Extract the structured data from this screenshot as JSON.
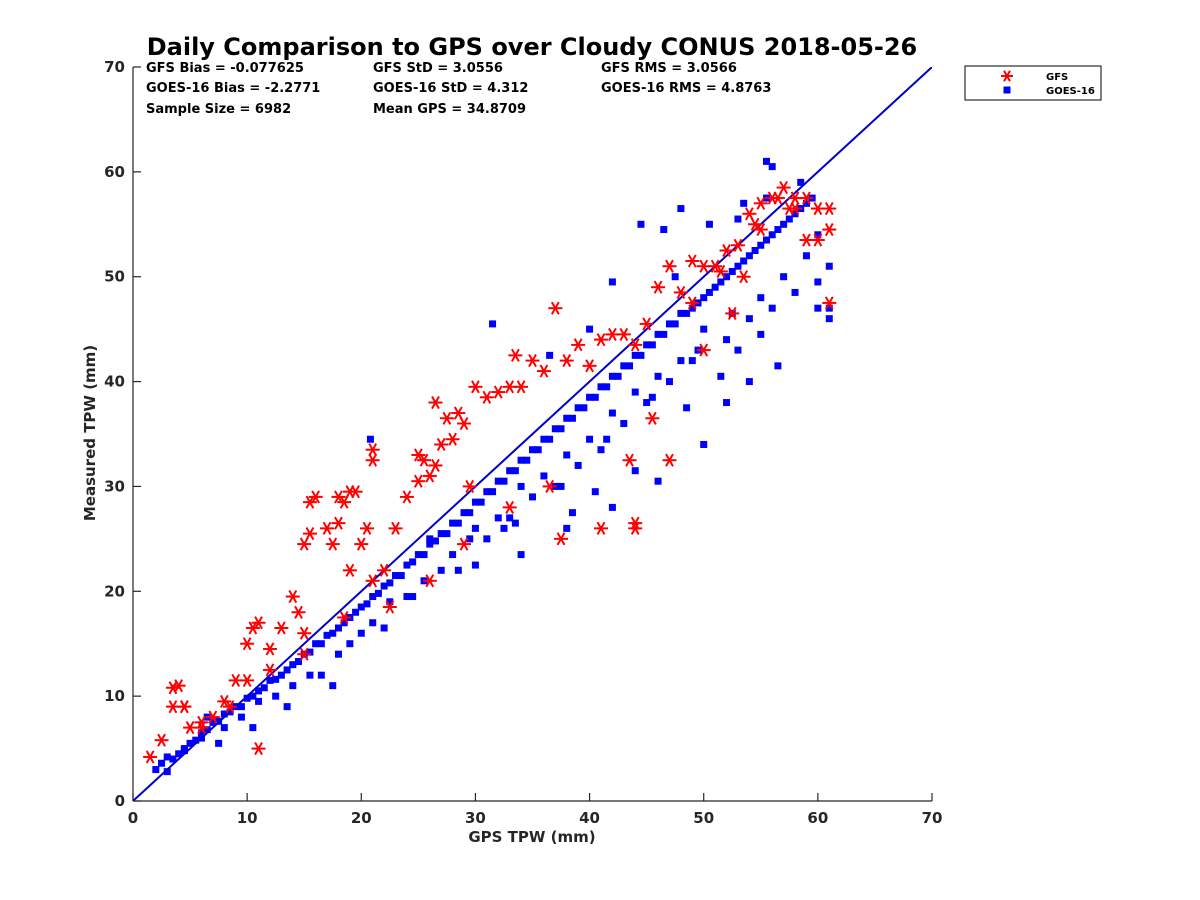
{
  "chart_data": {
    "type": "scatter",
    "title": "Daily Comparison to GPS over Cloudy CONUS 2018-05-26",
    "xlabel": "GPS TPW (mm)",
    "ylabel": "Measured TPW (mm)",
    "xlim": [
      0,
      70
    ],
    "ylim": [
      0,
      70
    ],
    "x_ticks": [
      0,
      10,
      20,
      30,
      40,
      50,
      60,
      70
    ],
    "y_ticks": [
      0,
      10,
      20,
      30,
      40,
      50,
      60,
      70
    ],
    "grid": false,
    "legend_position": "outside-top-right",
    "stats": [
      [
        "GFS Bias = -0.077625",
        "GFS StD = 3.0556",
        "GFS RMS = 3.0566"
      ],
      [
        "GOES-16 Bias = -2.2771",
        "GOES-16 StD = 4.312",
        "GOES-16 RMS = 4.8763"
      ],
      [
        "Sample Size = 6982",
        "Mean GPS = 34.8709",
        ""
      ]
    ],
    "reference_line": {
      "x": [
        0,
        70
      ],
      "y": [
        0,
        70
      ],
      "color": "#0000cc"
    },
    "series": [
      {
        "name": "GOES-16",
        "marker": "square",
        "color": "#0000ff",
        "x": [
          2.0,
          2.5,
          3.0,
          3.5,
          4.0,
          4.5,
          5.0,
          5.5,
          6.0,
          6.5,
          7.0,
          7.5,
          8.0,
          8.5,
          9.0,
          9.5,
          10.0,
          10.5,
          11.0,
          11.5,
          12.0,
          12.5,
          13.0,
          13.5,
          14.0,
          14.5,
          15.0,
          15.5,
          16.0,
          16.5,
          17.0,
          17.5,
          18.0,
          18.5,
          19.0,
          19.5,
          20.0,
          20.5,
          21.0,
          21.5,
          22.0,
          22.5,
          23.0,
          23.5,
          24.0,
          24.5,
          25.0,
          25.5,
          26.0,
          26.5,
          27.0,
          27.5,
          28.0,
          28.5,
          29.0,
          29.5,
          30.0,
          30.5,
          31.0,
          31.5,
          32.0,
          32.5,
          33.0,
          33.5,
          34.0,
          34.5,
          35.0,
          35.5,
          36.0,
          36.5,
          37.0,
          37.5,
          38.0,
          38.5,
          39.0,
          39.5,
          40.0,
          40.5,
          41.0,
          41.5,
          42.0,
          42.5,
          43.0,
          43.5,
          44.0,
          44.5,
          45.0,
          45.5,
          46.0,
          46.5,
          47.0,
          47.5,
          48.0,
          48.5,
          49.0,
          49.5,
          50.0,
          50.5,
          51.0,
          51.5,
          52.0,
          52.5,
          53.0,
          53.5,
          54.0,
          54.5,
          55.0,
          55.5,
          56.0,
          56.5,
          57.0,
          57.5,
          58.0,
          58.5,
          59.0,
          59.5,
          60.0,
          61.0,
          3.0,
          6.5,
          8.0,
          11.0,
          14.0,
          16.5,
          19.0,
          21.0,
          24.0,
          27.0,
          29.5,
          31.0,
          33.0,
          35.0,
          37.0,
          39.0,
          41.0,
          43.0,
          45.0,
          47.0,
          49.0,
          52.0,
          54.0,
          56.0,
          58.0,
          60.0,
          61.0,
          4.5,
          7.5,
          10.5,
          12.5,
          15.5,
          18.0,
          20.0,
          22.5,
          25.5,
          28.0,
          30.0,
          32.0,
          34.0,
          36.0,
          38.0,
          40.0,
          42.0,
          44.0,
          46.0,
          48.0,
          50.0,
          52.5,
          55.0,
          57.0,
          59.0,
          61.0,
          20.8,
          31.5,
          36.5,
          40.0,
          44.5,
          46.5,
          48.0,
          50.5,
          53.5,
          55.5,
          56.0,
          58.5,
          30.0,
          34.0,
          38.5,
          42.0,
          46.0,
          50.0,
          52.0,
          54.0,
          56.5,
          60.0,
          26.0,
          32.5,
          38.0,
          40.5,
          44.0,
          48.5,
          51.5,
          53.0,
          55.0,
          17.5,
          13.5,
          9.5,
          6.0,
          22.0,
          24.5,
          28.5,
          33.5,
          37.5,
          41.5,
          45.5,
          49.5,
          42.0,
          47.5,
          53.0,
          55.5
        ],
        "y": [
          3.0,
          3.6,
          4.2,
          4.0,
          4.5,
          4.8,
          5.5,
          5.8,
          6.5,
          6.8,
          7.5,
          7.6,
          8.3,
          8.5,
          9.0,
          9.0,
          9.8,
          10.0,
          10.5,
          10.8,
          11.5,
          11.6,
          12.0,
          12.5,
          13.0,
          13.3,
          14.0,
          14.2,
          15.0,
          15.0,
          15.8,
          16.0,
          16.5,
          17.0,
          17.5,
          18.0,
          18.5,
          18.8,
          19.5,
          19.8,
          20.5,
          20.8,
          21.5,
          21.5,
          22.5,
          22.8,
          23.5,
          23.5,
          24.5,
          24.8,
          25.5,
          25.5,
          26.5,
          26.5,
          27.5,
          27.5,
          28.5,
          28.5,
          29.5,
          29.5,
          30.5,
          30.5,
          31.5,
          31.5,
          32.5,
          32.5,
          33.5,
          33.5,
          34.5,
          34.5,
          35.5,
          35.5,
          36.5,
          36.5,
          37.5,
          37.5,
          38.5,
          38.5,
          39.5,
          39.5,
          40.5,
          40.5,
          41.5,
          41.5,
          42.5,
          42.5,
          43.5,
          43.5,
          44.5,
          44.5,
          45.5,
          45.5,
          46.5,
          46.5,
          47.0,
          47.5,
          48.0,
          48.5,
          49.0,
          49.5,
          50.0,
          50.5,
          51.0,
          51.5,
          52.0,
          52.5,
          53.0,
          53.5,
          54.0,
          54.5,
          55.0,
          55.5,
          56.0,
          56.5,
          57.0,
          57.5,
          54.0,
          51.0,
          2.8,
          8.0,
          7.0,
          9.5,
          11.0,
          12.0,
          15.0,
          17.0,
          19.5,
          22.0,
          25.0,
          25.0,
          27.0,
          29.0,
          30.0,
          32.0,
          33.5,
          36.0,
          38.0,
          40.0,
          42.0,
          44.0,
          46.0,
          47.0,
          48.5,
          49.5,
          46.0,
          5.0,
          5.5,
          7.0,
          10.0,
          12.0,
          14.0,
          16.0,
          19.0,
          21.0,
          23.5,
          26.0,
          27.0,
          30.0,
          31.0,
          33.0,
          34.5,
          37.0,
          39.0,
          40.5,
          42.0,
          45.0,
          46.5,
          48.0,
          50.0,
          52.0,
          47.0,
          34.5,
          45.5,
          42.5,
          45.0,
          55.0,
          54.5,
          56.5,
          55.0,
          57.0,
          61.0,
          60.5,
          59.0,
          22.5,
          23.5,
          27.5,
          28.0,
          30.5,
          34.0,
          38.0,
          40.0,
          41.5,
          47.0,
          25.0,
          26.0,
          26.0,
          29.5,
          31.5,
          37.5,
          40.5,
          43.0,
          44.5,
          11.0,
          9.0,
          8.0,
          6.0,
          16.5,
          19.5,
          22.0,
          26.5,
          30.0,
          34.5,
          38.5,
          43.0,
          49.5,
          50.0,
          55.5,
          57.5
        ]
      },
      {
        "name": "GFS",
        "marker": "asterisk",
        "color": "#ff0000",
        "x": [
          1.5,
          2.5,
          3.5,
          4.0,
          4.5,
          5.0,
          6.0,
          7.0,
          8.0,
          9.0,
          10.0,
          10.5,
          11.0,
          12.0,
          13.0,
          14.0,
          14.5,
          15.0,
          15.5,
          16.0,
          17.0,
          17.5,
          18.0,
          18.5,
          19.0,
          19.5,
          20.0,
          21.0,
          22.0,
          23.0,
          24.0,
          25.0,
          25.5,
          26.0,
          26.5,
          27.0,
          28.0,
          29.0,
          30.0,
          31.0,
          32.0,
          33.0,
          34.0,
          35.0,
          36.0,
          37.0,
          38.0,
          39.0,
          40.0,
          41.0,
          42.0,
          43.0,
          44.0,
          45.0,
          46.0,
          47.0,
          48.0,
          49.0,
          50.0,
          51.0,
          52.0,
          53.0,
          54.0,
          55.0,
          56.0,
          57.0,
          58.0,
          59.0,
          60.0,
          61.0,
          61.0,
          61.0,
          3.5,
          4.5,
          11.0,
          15.0,
          15.5,
          18.0,
          19.0,
          20.5,
          21.0,
          21.0,
          25.0,
          26.5,
          27.5,
          28.5,
          29.5,
          33.5,
          37.5,
          41.0,
          43.5,
          44.0,
          44.0,
          47.0,
          50.0,
          52.5,
          53.5,
          55.0,
          57.5,
          59.0,
          60.0,
          36.5,
          33.0,
          29.0,
          26.0,
          22.5,
          18.5,
          15.0,
          12.0,
          10.0,
          8.5,
          6.0,
          45.5,
          49.0,
          51.5,
          54.5,
          56.5,
          58.0
        ],
        "y": [
          4.2,
          5.8,
          9.0,
          11.0,
          9.0,
          7.0,
          7.5,
          8.0,
          9.5,
          11.5,
          15.0,
          16.5,
          17.0,
          14.5,
          16.5,
          19.5,
          18.0,
          24.5,
          28.5,
          29.0,
          26.0,
          24.5,
          29.0,
          28.5,
          22.0,
          29.5,
          24.5,
          21.0,
          22.0,
          26.0,
          29.0,
          30.5,
          32.5,
          31.0,
          32.0,
          34.0,
          34.5,
          36.0,
          39.5,
          38.5,
          39.0,
          39.5,
          39.5,
          42.0,
          41.0,
          47.0,
          42.0,
          43.5,
          41.5,
          44.0,
          44.5,
          44.5,
          43.5,
          45.5,
          49.0,
          51.0,
          48.5,
          51.5,
          51.0,
          51.0,
          52.5,
          53.0,
          56.0,
          57.0,
          57.5,
          58.5,
          57.5,
          57.5,
          53.5,
          56.5,
          54.5,
          47.5,
          10.8,
          9.0,
          5.0,
          16.0,
          25.5,
          26.5,
          29.5,
          26.0,
          33.5,
          32.5,
          33.0,
          38.0,
          36.5,
          37.0,
          30.0,
          42.5,
          25.0,
          26.0,
          32.5,
          26.5,
          26.0,
          32.5,
          43.0,
          46.5,
          50.0,
          54.5,
          56.5,
          53.5,
          56.5,
          30.0,
          28.0,
          24.5,
          21.0,
          18.5,
          17.5,
          14.0,
          12.5,
          11.5,
          9.0,
          7.0,
          36.5,
          47.5,
          50.5,
          55.0,
          57.5,
          56.5
        ]
      }
    ],
    "legend": [
      {
        "label": "GFS",
        "marker": "asterisk",
        "color": "#ff0000"
      },
      {
        "label": "GOES-16",
        "marker": "square",
        "color": "#0000ff"
      }
    ]
  }
}
